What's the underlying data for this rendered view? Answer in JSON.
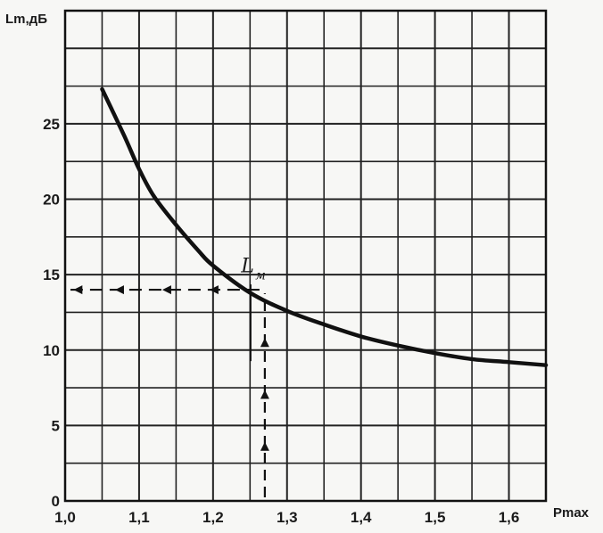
{
  "chart_data": {
    "type": "line",
    "title": "",
    "xlabel": "Pmax",
    "ylabel": "Lm,дБ",
    "xlim": [
      1.0,
      1.65
    ],
    "ylim": [
      0,
      32.5
    ],
    "x_ticks": [
      1.0,
      1.1,
      1.2,
      1.3,
      1.4,
      1.5,
      1.6
    ],
    "x_tick_labels": [
      "1,0",
      "1,1",
      "1,2",
      "1,3",
      "1,4",
      "1,5",
      "1,6"
    ],
    "y_ticks": [
      0,
      5,
      10,
      15,
      20,
      25
    ],
    "y_tick_labels": [
      "0",
      "5",
      "10",
      "15",
      "20",
      "25"
    ],
    "grid": true,
    "series": [
      {
        "x": [
          1.05,
          1.08,
          1.1,
          1.12,
          1.15,
          1.18,
          1.2,
          1.25,
          1.3,
          1.35,
          1.4,
          1.45,
          1.5,
          1.55,
          1.6,
          1.65
        ],
        "y": [
          27.3,
          24.2,
          22.0,
          20.2,
          18.3,
          16.6,
          15.6,
          13.8,
          12.6,
          11.7,
          10.9,
          10.3,
          9.8,
          9.4,
          9.2,
          9.0
        ]
      }
    ],
    "annotations": [
      {
        "text": "L",
        "subscript": "м",
        "x": 1.25,
        "y": 15.4
      }
    ],
    "reference_point": {
      "x": 1.27,
      "y": 14.0
    }
  }
}
